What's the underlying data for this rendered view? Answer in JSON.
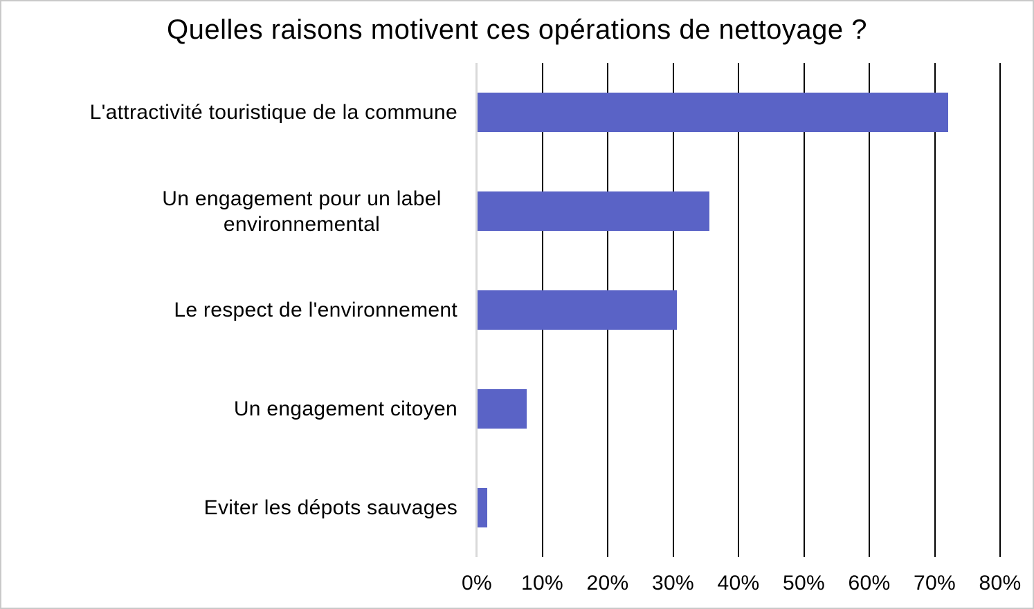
{
  "window": {
    "background": "#ffffff",
    "border_color": "#c9c9c9"
  },
  "chart_data": {
    "type": "bar",
    "orientation": "horizontal",
    "title": "Quelles raisons motivent ces opérations de nettoyage ?",
    "categories": [
      "L'attractivité touristique de la commune",
      "Un engagement pour un label environnemental",
      "Le respect de l'environnement",
      "Un engagement citoyen",
      "Eviter les dépots sauvages"
    ],
    "values": [
      72,
      35.5,
      30.5,
      7.5,
      1.5
    ],
    "unit": "%",
    "xlabel": "",
    "ylabel": "",
    "xlim": [
      0,
      80
    ],
    "x_tick_values": [
      0,
      10,
      20,
      30,
      40,
      50,
      60,
      70,
      80
    ],
    "x_ticks": [
      "0%",
      "10%",
      "20%",
      "30%",
      "40%",
      "50%",
      "60%",
      "70%",
      "80%"
    ],
    "grid": "vertical-major",
    "legend": "none",
    "bar_color": "#5a63c6",
    "gridline_color": "#000000",
    "axis_line_color": "#d9d9d9",
    "text_color": "#000000"
  }
}
